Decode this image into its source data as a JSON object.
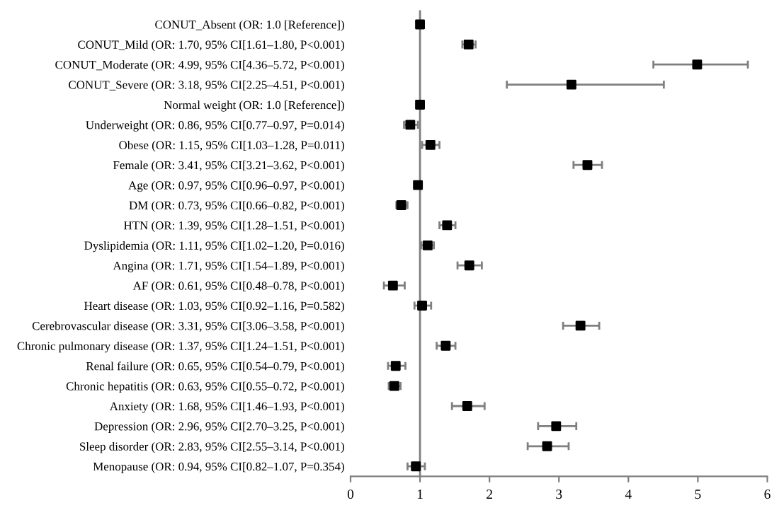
{
  "chart_data": {
    "type": "scatter",
    "orientation": "horizontal",
    "marker": "square",
    "grid": false,
    "legend": false,
    "color": "#000000",
    "categories": [
      "CONUT_Absent (OR: 1.0 [Reference])",
      "CONUT_Mild (OR: 1.70, 95% CI[1.61–1.80, P<0.001)",
      "CONUT_Moderate (OR: 4.99, 95% CI[4.36–5.72, P<0.001)",
      "CONUT_Severe (OR: 3.18, 95% CI[2.25–4.51, P<0.001)",
      "Normal weight (OR: 1.0 [Reference])",
      "Underweight (OR: 0.86, 95% CI[0.77–0.97, P=0.014)",
      "Obese (OR: 1.15, 95% CI[1.03–1.28, P=0.011)",
      "Female (OR: 3.41, 95% CI[3.21–3.62, P<0.001)",
      "Age (OR: 0.97, 95% CI[0.96–0.97, P<0.001)",
      "DM (OR: 0.73, 95% CI[0.66–0.82, P<0.001)",
      "HTN (OR: 1.39, 95% CI[1.28–1.51, P<0.001)",
      "Dyslipidemia (OR: 1.11, 95% CI[1.02–1.20, P=0.016)",
      "Angina (OR: 1.71, 95% CI[1.54–1.89, P<0.001)",
      "AF (OR: 0.61, 95% CI[0.48–0.78, P<0.001)",
      "Heart disease (OR: 1.03, 95% CI[0.92–1.16, P=0.582)",
      "Cerebrovascular disease (OR: 3.31, 95% CI[3.06–3.58, P<0.001)",
      "Chronic pulmonary disease (OR: 1.37, 95% CI[1.24–1.51, P<0.001)",
      "Renal failure (OR: 0.65, 95% CI[0.54–0.79, P<0.001)",
      "Chronic hepatitis (OR: 0.63, 95% CI[0.55–0.72, P<0.001)",
      "Anxiety (OR: 1.68, 95% CI[1.46–1.93, P<0.001)",
      "Depression (OR: 2.96, 95% CI[2.70–3.25, P<0.001)",
      "Sleep disorder (OR: 2.83, 95% CI[2.55–3.14, P<0.001)",
      "Menopause (OR: 0.94, 95% CI[0.82–1.07, P=0.354)"
    ],
    "values": [
      1.0,
      1.7,
      4.99,
      3.18,
      1.0,
      0.86,
      1.15,
      3.41,
      0.97,
      0.73,
      1.39,
      1.11,
      1.71,
      0.61,
      1.03,
      3.31,
      1.37,
      0.65,
      0.63,
      1.68,
      2.96,
      2.83,
      0.94
    ],
    "errors": [
      null,
      [
        1.61,
        1.8
      ],
      [
        4.36,
        5.72
      ],
      [
        2.25,
        4.51
      ],
      null,
      [
        0.77,
        0.97
      ],
      [
        1.03,
        1.28
      ],
      [
        3.21,
        3.62
      ],
      [
        0.96,
        0.97
      ],
      [
        0.66,
        0.82
      ],
      [
        1.28,
        1.51
      ],
      [
        1.02,
        1.2
      ],
      [
        1.54,
        1.89
      ],
      [
        0.48,
        0.78
      ],
      [
        0.92,
        1.16
      ],
      [
        3.06,
        3.58
      ],
      [
        1.24,
        1.51
      ],
      [
        0.54,
        0.79
      ],
      [
        0.55,
        0.72
      ],
      [
        1.46,
        1.93
      ],
      [
        2.7,
        3.25
      ],
      [
        2.55,
        3.14
      ],
      [
        0.82,
        1.07
      ]
    ],
    "xlim": [
      0,
      6
    ],
    "xticks": [
      0,
      1,
      2,
      3,
      4,
      5,
      6
    ],
    "ref_lines": [
      {
        "axis": "x",
        "value": 1,
        "color": "#7f7f7f",
        "line_style": "solid"
      }
    ]
  }
}
